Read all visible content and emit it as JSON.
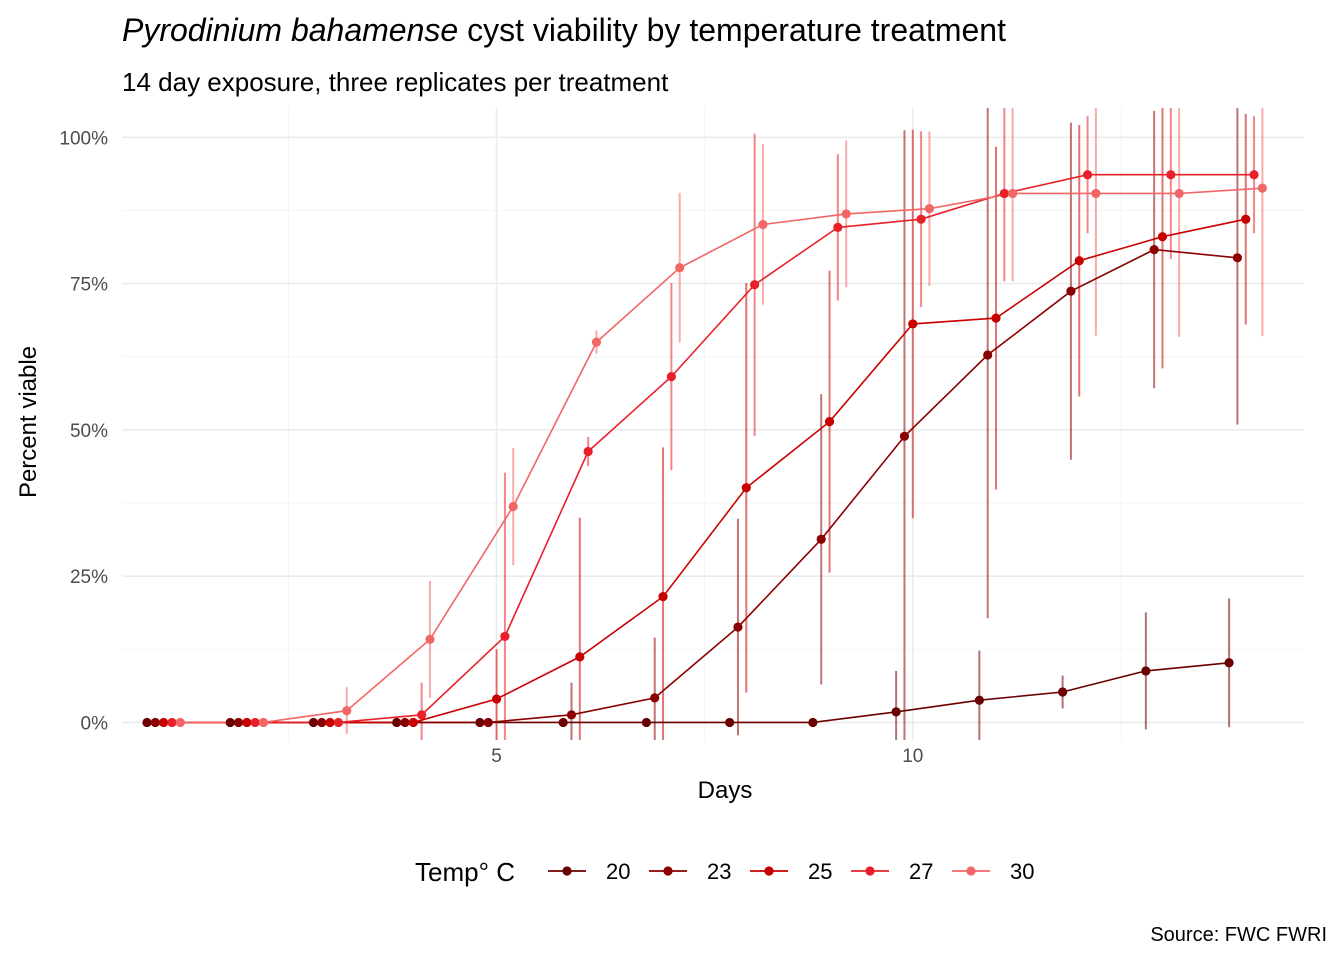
{
  "chart_data": {
    "type": "line",
    "title_italic": "Pyrodinium bahamense",
    "title_rest": " cyst viability by temperature treatment",
    "subtitle": "14 day exposure, three replicates per treatment",
    "xlabel": "Days",
    "ylabel": "Percent viable",
    "caption": "Source: FWC FWRI",
    "legend_title": "Temp° C",
    "legend_position": "bottom",
    "grid": true,
    "xlim": [
      0.5,
      14.7
    ],
    "ylim": [
      -3,
      105
    ],
    "x_ticks": [
      5,
      10
    ],
    "x_tick_labels": [
      "5",
      "10"
    ],
    "y_ticks": [
      0,
      25,
      50,
      75,
      100
    ],
    "y_tick_labels": [
      "0%",
      "25%",
      "50%",
      "75%",
      "100%"
    ],
    "series": [
      {
        "name": "20",
        "color": "#6b0000",
        "x": [
          0.8,
          1.8,
          2.8,
          3.8,
          4.8,
          5.8,
          6.8,
          7.8,
          8.8,
          9.8,
          10.8,
          11.8,
          12.8,
          13.8
        ],
        "y": [
          0,
          0,
          0,
          0,
          0,
          0,
          0,
          0,
          0,
          1.8,
          3.8,
          5.2,
          8.8,
          10.2
        ],
        "err": [
          0,
          0,
          0,
          0,
          0,
          0,
          0,
          0,
          0,
          7,
          8.5,
          2.8,
          10,
          11
        ]
      },
      {
        "name": "23",
        "color": "#8b0000",
        "x": [
          0.9,
          1.9,
          2.9,
          3.9,
          4.9,
          5.9,
          6.9,
          7.9,
          8.9,
          9.9,
          10.9,
          11.9,
          12.9,
          13.9
        ],
        "y": [
          0,
          0,
          0,
          0,
          0,
          1.3,
          4.2,
          16.3,
          31.3,
          48.9,
          62.8,
          73.7,
          80.8,
          79.4
        ],
        "err": [
          0,
          0,
          0,
          0,
          0,
          5.5,
          10.3,
          18.5,
          24.8,
          52.3,
          45,
          28.8,
          23.7,
          28.5
        ]
      },
      {
        "name": "25",
        "color": "#c80000",
        "x": [
          1.0,
          2.0,
          3.0,
          4.0,
          5.0,
          6.0,
          7.0,
          8.0,
          9.0,
          10.0,
          11.0,
          12.0,
          13.0,
          14.0
        ],
        "y": [
          0,
          0,
          0,
          0,
          4.0,
          11.2,
          21.5,
          40.1,
          51.4,
          68.1,
          69.1,
          78.9,
          83.0,
          86.0
        ],
        "err": [
          0,
          0,
          0,
          0,
          8.5,
          23.8,
          25.5,
          35,
          25.8,
          33.2,
          29.3,
          23.2,
          22.5,
          18
        ]
      },
      {
        "name": "27",
        "color": "#e8202a",
        "x": [
          1.1,
          2.1,
          3.1,
          4.1,
          5.1,
          6.1,
          7.1,
          8.1,
          9.1,
          10.1,
          11.1,
          12.1,
          13.1,
          14.1
        ],
        "y": [
          0,
          0,
          0,
          1.3,
          14.7,
          46.3,
          59.1,
          74.8,
          84.6,
          86.0,
          90.4,
          93.6,
          93.6,
          93.6
        ],
        "err": [
          0,
          0,
          0,
          5.5,
          28,
          2.5,
          16,
          25.8,
          12.5,
          15,
          15,
          10,
          14.4,
          10
        ]
      },
      {
        "name": "30",
        "color": "#f26666",
        "x": [
          1.2,
          2.2,
          3.2,
          4.2,
          5.2,
          6.2,
          7.2,
          8.2,
          9.2,
          10.2,
          11.2,
          12.2,
          13.2,
          14.2
        ],
        "y": [
          0,
          0,
          2.0,
          14.2,
          36.9,
          65.0,
          77.7,
          85.1,
          86.9,
          87.8,
          90.4,
          90.4,
          90.4,
          91.3
        ],
        "err": [
          0,
          0,
          4,
          10,
          10,
          2,
          12.8,
          13.7,
          12.5,
          13.2,
          15,
          24.3,
          24.5,
          25.3
        ]
      }
    ]
  }
}
